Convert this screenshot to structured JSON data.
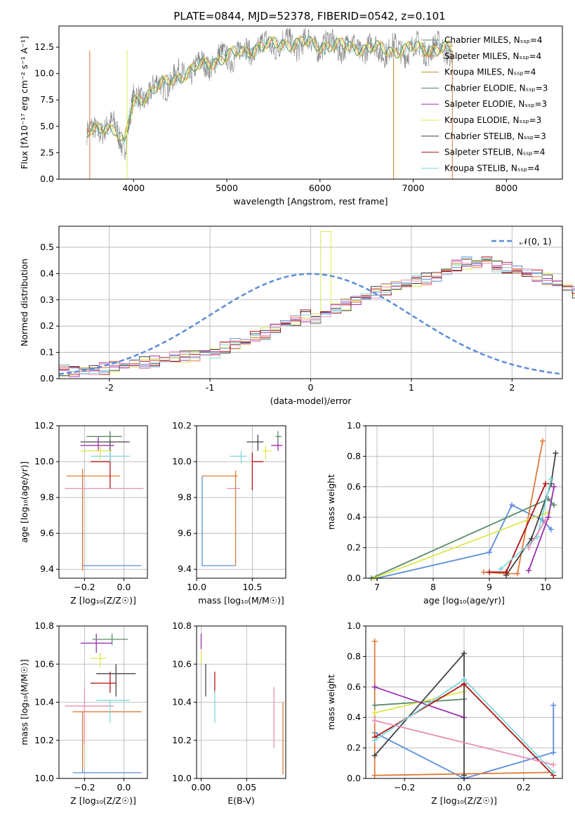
{
  "page": {
    "title": "PLATE=0844, MJD=52378, FIBERID=0542, z=0.101"
  },
  "chart_data": [
    {
      "id": "spectrum",
      "type": "line",
      "title": "PLATE=0844, MJD=52378, FIBERID=0542, z=0.101",
      "xlabel": "wavelength [Angstrom, rest frame]",
      "ylabel": "Flux [fλ10⁻¹⁷ erg cm⁻² s⁻¹ A⁻¹]",
      "xlim": [
        3200,
        8600
      ],
      "ylim": [
        0,
        14.5
      ],
      "xticks": [
        4000,
        5000,
        6000,
        7000,
        8000
      ],
      "yticks": [
        0.0,
        2.5,
        5.0,
        7.5,
        10.0,
        12.5
      ],
      "legend_position": "right",
      "anchor_x": [
        3500,
        3600,
        3700,
        3800,
        3900,
        4000,
        4200,
        4500,
        4800,
        5000,
        5300,
        5600,
        5900,
        6200,
        6500,
        6800,
        7100,
        7400
      ],
      "anchor_y": [
        4.2,
        4.6,
        5.1,
        4.8,
        3.2,
        7.3,
        8.4,
        9.8,
        11.0,
        11.6,
        12.4,
        12.9,
        12.8,
        12.6,
        12.4,
        12.2,
        12.4,
        12.3
      ],
      "legend": [
        {
          "label": "Chabrier MILES, Nₛₛₚ=4",
          "color": "#5b8c6b"
        },
        {
          "label": "Salpeter MILES, Nₛₛₚ=4",
          "color": "#e07b39"
        },
        {
          "label": "Kroupa MILES, Nₛₛₚ=4",
          "color": "#c08a2a"
        },
        {
          "label": "Chabrier ELODIE, Nₛₛₚ=3",
          "color": "#4e7f5a"
        },
        {
          "label": "Salpeter ELODIE, Nₛₛₚ=3",
          "color": "#9b30b0"
        },
        {
          "label": "Kroupa ELODIE, Nₛₛₚ=3",
          "color": "#dde84a"
        },
        {
          "label": "Chabrier STELIB, Nₛₛₚ=3",
          "color": "#444444"
        },
        {
          "label": "Salpeter STELIB, Nₛₛₚ=4",
          "color": "#b01515"
        },
        {
          "label": "Kroupa STELIB, Nₛₛₚ=4",
          "color": "#7fd8dc"
        }
      ]
    },
    {
      "id": "residuals",
      "type": "step",
      "xlabel": "(data-model)/error",
      "ylabel": "Normed distribution",
      "xlim": [
        -2.5,
        2.5
      ],
      "ylim": [
        0,
        0.58
      ],
      "xticks": [
        -2,
        -1,
        0,
        1,
        2
      ],
      "yticks": [
        0.0,
        0.1,
        0.2,
        0.3,
        0.4,
        0.5
      ],
      "legend": "𝒩(0, 1)",
      "gaussian_color": "#5b8dd9",
      "bin_width": 0.1,
      "series_colors": [
        "#5b8dd9",
        "#e07b39",
        "#9b30b0",
        "#dde84a",
        "#444444",
        "#b01515",
        "#7fd8dc",
        "#e88fb8"
      ],
      "base_hist": [
        0.03,
        0.03,
        0.035,
        0.035,
        0.04,
        0.045,
        0.05,
        0.055,
        0.06,
        0.065,
        0.07,
        0.08,
        0.085,
        0.09,
        0.1,
        0.1,
        0.12,
        0.13,
        0.14,
        0.16,
        0.17,
        0.19,
        0.21,
        0.22,
        0.24,
        0.23,
        0.25,
        0.27,
        0.28,
        0.3,
        0.31,
        0.33,
        0.34,
        0.35,
        0.36,
        0.37,
        0.38,
        0.39,
        0.41,
        0.43,
        0.44,
        0.44,
        0.45,
        0.43,
        0.42,
        0.41,
        0.4,
        0.39,
        0.38,
        0.36,
        0.35,
        0.33,
        0.3,
        0.28,
        0.26,
        0.24,
        0.22,
        0.21,
        0.19,
        0.17,
        0.16,
        0.14,
        0.12,
        0.11,
        0.1,
        0.09,
        0.08,
        0.07,
        0.06,
        0.055,
        0.05,
        0.045,
        0.04,
        0.035,
        0.035,
        0.03,
        0.03,
        0.025,
        0.025,
        0.025,
        0.02,
        0.02,
        0.02,
        0.02,
        0.02,
        0.02,
        0.02,
        0.02,
        0.02,
        0.02
      ]
    },
    {
      "id": "age_vs_Z",
      "type": "errorbar",
      "xlabel": "Z [log₁₀(Z/Z☉)]",
      "ylabel": "age  [log₁₀(age/yr)]",
      "xlim": [
        -0.33,
        0.12
      ],
      "ylim": [
        9.35,
        10.2
      ],
      "xticks": [
        -0.2,
        0.0
      ],
      "xtick_labels": [
        "−0.2",
        "0.0"
      ],
      "yticks": [
        9.4,
        9.6,
        9.8,
        10.0,
        10.2
      ],
      "points": [
        {
          "x": -0.21,
          "y": 9.42,
          "xerr": [
            0.0,
            0.3
          ],
          "yerr": [
            0.0,
            0.52
          ],
          "color": "#5b8dd9"
        },
        {
          "x": -0.21,
          "y": 9.92,
          "xerr": [
            0.08,
            0.19
          ],
          "yerr": [
            0.53,
            0.04
          ],
          "color": "#e07b39"
        },
        {
          "x": -0.1,
          "y": 9.85,
          "xerr": [
            0.2,
            0.2
          ],
          "yerr": [
            0.0,
            0.0
          ],
          "color": "#e88fb8"
        },
        {
          "x": -0.07,
          "y": 10.0,
          "xerr": [
            0.1,
            0.0
          ],
          "yerr": [
            0.15,
            0.05
          ],
          "color": "#b01515"
        },
        {
          "x": -0.07,
          "y": 10.11,
          "xerr": [
            0.15,
            0.1
          ],
          "yerr": [
            0.05,
            0.05
          ],
          "color": "#444444"
        },
        {
          "x": -0.13,
          "y": 10.09,
          "xerr": [
            0.09,
            0.08
          ],
          "yerr": [
            0.03,
            0.05
          ],
          "color": "#9b30b0"
        },
        {
          "x": -0.07,
          "y": 10.14,
          "xerr": [
            0.12,
            0.06
          ],
          "yerr": [
            0.02,
            0.03
          ],
          "color": "#5b8c6b"
        },
        {
          "x": -0.12,
          "y": 10.06,
          "xerr": [
            0.1,
            0.06
          ],
          "yerr": [
            0.05,
            0.03
          ],
          "color": "#dde84a"
        },
        {
          "x": -0.07,
          "y": 10.03,
          "xerr": [
            0.1,
            0.1
          ],
          "yerr": [
            0.03,
            0.03
          ],
          "color": "#7fd8dc"
        }
      ]
    },
    {
      "id": "age_vs_mass",
      "type": "errorbar",
      "xlabel": "mass [log₁₀(M/M☉)]",
      "ylabel": "",
      "xlim": [
        10.0,
        10.8
      ],
      "ylim": [
        9.35,
        10.2
      ],
      "xticks": [
        10.0,
        10.5
      ],
      "xtick_labels": [
        "10.0",
        "10.5"
      ],
      "yticks": [
        9.4,
        9.6,
        9.8,
        10.0,
        10.2
      ],
      "points": [
        {
          "x": 10.05,
          "y": 9.42,
          "xerr": [
            0.0,
            0.3
          ],
          "yerr": [
            0.0,
            0.5
          ],
          "color": "#5b8dd9"
        },
        {
          "x": 10.35,
          "y": 9.92,
          "xerr": [
            0.3,
            0.02
          ],
          "yerr": [
            0.5,
            0.03
          ],
          "color": "#e07b39"
        },
        {
          "x": 10.37,
          "y": 9.85,
          "xerr": [
            0.1,
            0.02
          ],
          "yerr": [
            0.0,
            0.0
          ],
          "color": "#e88fb8"
        },
        {
          "x": 10.5,
          "y": 10.0,
          "xerr": [
            0.0,
            0.1
          ],
          "yerr": [
            0.16,
            0.05
          ],
          "color": "#b01515"
        },
        {
          "x": 10.55,
          "y": 10.11,
          "xerr": [
            0.1,
            0.05
          ],
          "yerr": [
            0.05,
            0.04
          ],
          "color": "#444444"
        },
        {
          "x": 10.73,
          "y": 10.09,
          "xerr": [
            0.06,
            0.04
          ],
          "yerr": [
            0.03,
            0.05
          ],
          "color": "#9b30b0"
        },
        {
          "x": 10.73,
          "y": 10.14,
          "xerr": [
            0.02,
            0.03
          ],
          "yerr": [
            0.03,
            0.03
          ],
          "color": "#5b8c6b"
        },
        {
          "x": 10.62,
          "y": 10.06,
          "xerr": [
            0.03,
            0.05
          ],
          "yerr": [
            0.05,
            0.03
          ],
          "color": "#dde84a"
        },
        {
          "x": 10.4,
          "y": 10.03,
          "xerr": [
            0.1,
            0.05
          ],
          "yerr": [
            0.04,
            0.03
          ],
          "color": "#7fd8dc"
        }
      ]
    },
    {
      "id": "mw_vs_age",
      "type": "line",
      "xlabel": "age  [log₁₀(age/yr)]",
      "ylabel": "mass weight",
      "xlim": [
        6.8,
        10.3
      ],
      "ylim": [
        0.0,
        1.0
      ],
      "xticks": [
        7,
        8,
        9,
        10
      ],
      "yticks": [
        0.0,
        0.2,
        0.4,
        0.6,
        0.8,
        1.0
      ],
      "series": [
        {
          "color": "#5b8dd9",
          "x": [
            7.0,
            9.0,
            9.4,
            9.95,
            10.1
          ],
          "y": [
            0.0,
            0.17,
            0.48,
            0.38,
            0.32
          ]
        },
        {
          "color": "#e07b39",
          "x": [
            8.9,
            9.3,
            9.5,
            9.95
          ],
          "y": [
            0.04,
            0.03,
            0.03,
            0.9
          ]
        },
        {
          "color": "#5b8c6b",
          "x": [
            6.9,
            10.05,
            10.15
          ],
          "y": [
            0.0,
            0.52,
            0.48
          ]
        },
        {
          "color": "#dde84a",
          "x": [
            6.95,
            9.95,
            10.05
          ],
          "y": [
            0.0,
            0.42,
            0.43
          ]
        },
        {
          "color": "#9b30b0",
          "x": [
            9.7,
            10.05,
            10.15
          ],
          "y": [
            0.05,
            0.4,
            0.6
          ]
        },
        {
          "color": "#444444",
          "x": [
            9.3,
            9.75,
            10.1,
            10.18
          ],
          "y": [
            0.02,
            0.26,
            0.62,
            0.82
          ]
        },
        {
          "color": "#b01515",
          "x": [
            9.0,
            9.3,
            10.0
          ],
          "y": [
            0.04,
            0.04,
            0.62
          ]
        },
        {
          "color": "#7fd8dc",
          "x": [
            9.2,
            9.85,
            10.1
          ],
          "y": [
            0.06,
            0.27,
            0.65
          ]
        },
        {
          "color": "#e88fb8",
          "x": [
            9.7,
            10.0
          ],
          "y": [
            0.2,
            0.38
          ]
        }
      ]
    },
    {
      "id": "mass_vs_Z",
      "type": "errorbar",
      "xlabel": "Z [log₁₀(Z/Z☉)]",
      "ylabel": "mass [log₁₀(M/M☉)]",
      "xlim": [
        -0.33,
        0.12
      ],
      "ylim": [
        10.0,
        10.8
      ],
      "xticks": [
        -0.2,
        0.0
      ],
      "xtick_labels": [
        "−0.2",
        "0.0"
      ],
      "yticks": [
        10.0,
        10.2,
        10.4,
        10.6,
        10.8
      ],
      "points": [
        {
          "x": -0.21,
          "y": 10.03,
          "xerr": [
            0.05,
            0.3
          ],
          "yerr": [
            0.0,
            0.32
          ],
          "color": "#5b8dd9"
        },
        {
          "x": -0.21,
          "y": 10.35,
          "xerr": [
            0.05,
            0.3
          ],
          "yerr": [
            0.3,
            0.0
          ],
          "color": "#e07b39"
        },
        {
          "x": -0.2,
          "y": 10.38,
          "xerr": [
            0.1,
            0.15
          ],
          "yerr": [
            0.2,
            0.1
          ],
          "color": "#e88fb8"
        },
        {
          "x": -0.07,
          "y": 10.5,
          "xerr": [
            0.1,
            0.03
          ],
          "yerr": [
            0.05,
            0.06
          ],
          "color": "#b01515"
        },
        {
          "x": -0.04,
          "y": 10.55,
          "xerr": [
            0.1,
            0.1
          ],
          "yerr": [
            0.12,
            0.05
          ],
          "color": "#444444"
        },
        {
          "x": -0.14,
          "y": 10.71,
          "xerr": [
            0.08,
            0.08
          ],
          "yerr": [
            0.05,
            0.05
          ],
          "color": "#9b30b0"
        },
        {
          "x": -0.06,
          "y": 10.73,
          "xerr": [
            0.1,
            0.08
          ],
          "yerr": [
            0.03,
            0.03
          ],
          "color": "#5b8c6b"
        },
        {
          "x": -0.12,
          "y": 10.63,
          "xerr": [
            0.05,
            0.03
          ],
          "yerr": [
            0.05,
            0.03
          ],
          "color": "#dde84a"
        },
        {
          "x": -0.07,
          "y": 10.41,
          "xerr": [
            0.07,
            0.1
          ],
          "yerr": [
            0.12,
            0.0
          ],
          "color": "#7fd8dc"
        }
      ]
    },
    {
      "id": "mass_vs_ebv",
      "type": "errorbar",
      "xlabel": "E(B-V)",
      "ylabel": "",
      "xlim": [
        -0.005,
        0.093
      ],
      "ylim": [
        10.0,
        10.8
      ],
      "xticks": [
        0.0,
        0.05
      ],
      "xtick_labels": [
        "0.00",
        "0.05"
      ],
      "yticks": [
        10.0,
        10.2,
        10.4,
        10.6,
        10.8
      ],
      "points": [
        {
          "x": 0.0,
          "y": 10.71,
          "xerr": [
            0,
            0
          ],
          "yerr": [
            0.03,
            0.05
          ],
          "color": "#9b30b0"
        },
        {
          "x": 0.0,
          "y": 10.63,
          "xerr": [
            0,
            0
          ],
          "yerr": [
            0.03,
            0.04
          ],
          "color": "#dde84a"
        },
        {
          "x": 0.005,
          "y": 10.55,
          "xerr": [
            0,
            0
          ],
          "yerr": [
            0.12,
            0.05
          ],
          "color": "#444444"
        },
        {
          "x": 0.015,
          "y": 10.5,
          "xerr": [
            0,
            0
          ],
          "yerr": [
            0.05,
            0.06
          ],
          "color": "#b01515"
        },
        {
          "x": 0.015,
          "y": 10.41,
          "xerr": [
            0,
            0
          ],
          "yerr": [
            0.12,
            0.05
          ],
          "color": "#7fd8dc"
        },
        {
          "x": 0.08,
          "y": 10.38,
          "xerr": [
            0,
            0
          ],
          "yerr": [
            0.22,
            0.1
          ],
          "color": "#e88fb8"
        },
        {
          "x": 0.09,
          "y": 10.2,
          "xerr": [
            0,
            0
          ],
          "yerr": [
            0.18,
            0.2
          ],
          "color": "#e07b39"
        },
        {
          "x": 0.09,
          "y": 10.03,
          "xerr": [
            0,
            0
          ],
          "yerr": [
            0.0,
            0.0
          ],
          "color": "#5b8dd9"
        }
      ]
    },
    {
      "id": "mw_vs_Z",
      "type": "line",
      "xlabel": "Z [log₁₀(Z/Z☉)]",
      "ylabel": "mass weight",
      "xlim": [
        -0.33,
        0.33
      ],
      "ylim": [
        0.0,
        1.0
      ],
      "xticks": [
        -0.2,
        0.0,
        0.2
      ],
      "xtick_labels": [
        "−0.2",
        "0.0",
        "0.2"
      ],
      "yticks": [
        0.0,
        0.2,
        0.4,
        0.6,
        0.8,
        1.0
      ],
      "series": [
        {
          "color": "#5b8dd9",
          "x": [
            -0.3,
            0.0,
            0.3,
            0.3
          ],
          "y": [
            0.3,
            0.0,
            0.17,
            0.48
          ]
        },
        {
          "color": "#e07b39",
          "x": [
            -0.3,
            -0.3,
            0.3
          ],
          "y": [
            0.9,
            0.02,
            0.04
          ]
        },
        {
          "color": "#5b8c6b",
          "x": [
            -0.3,
            0.0
          ],
          "y": [
            0.48,
            0.52
          ]
        },
        {
          "color": "#dde84a",
          "x": [
            -0.3,
            0.0
          ],
          "y": [
            0.43,
            0.57
          ]
        },
        {
          "color": "#9b30b0",
          "x": [
            -0.3,
            0.0
          ],
          "y": [
            0.6,
            0.4
          ]
        },
        {
          "color": "#444444",
          "x": [
            -0.3,
            0.0,
            0.0
          ],
          "y": [
            0.15,
            0.82,
            0.02
          ]
        },
        {
          "color": "#b01515",
          "x": [
            -0.3,
            0.0,
            0.3
          ],
          "y": [
            0.27,
            0.62,
            0.02
          ]
        },
        {
          "color": "#7fd8dc",
          "x": [
            -0.3,
            0.0,
            0.3
          ],
          "y": [
            0.25,
            0.65,
            0.04
          ]
        },
        {
          "color": "#e88fb8",
          "x": [
            -0.3,
            0.3
          ],
          "y": [
            0.38,
            0.09
          ]
        }
      ]
    }
  ]
}
